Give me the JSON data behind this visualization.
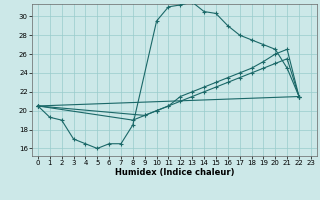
{
  "bg_color": "#cce8e8",
  "grid_color": "#99cccc",
  "line_color": "#1a6868",
  "xlabel": "Humidex (Indice chaleur)",
  "xlim": [
    -0.5,
    23.5
  ],
  "ylim": [
    15.2,
    31.3
  ],
  "xticks": [
    0,
    1,
    2,
    3,
    4,
    5,
    6,
    7,
    8,
    9,
    10,
    11,
    12,
    13,
    14,
    15,
    16,
    17,
    18,
    19,
    20,
    21,
    22,
    23
  ],
  "yticks": [
    16,
    18,
    20,
    22,
    24,
    26,
    28,
    30
  ],
  "line1_x": [
    0,
    1,
    2,
    3,
    4,
    5,
    6,
    7,
    8,
    10,
    11,
    12,
    13,
    14,
    15,
    16,
    17,
    18,
    19,
    20,
    21,
    22
  ],
  "line1_y": [
    20.5,
    19.3,
    19.0,
    17.0,
    16.5,
    16.0,
    16.5,
    16.5,
    18.5,
    29.5,
    31.0,
    31.2,
    31.5,
    30.5,
    30.3,
    29.0,
    28.0,
    27.5,
    27.0,
    26.5,
    24.5,
    21.5
  ],
  "line2_x": [
    0,
    8,
    9,
    10,
    11,
    12,
    13,
    14,
    15,
    16,
    17,
    18,
    19,
    20,
    21,
    22
  ],
  "line2_y": [
    20.5,
    19.0,
    19.5,
    20.0,
    20.5,
    21.5,
    22.0,
    22.5,
    23.0,
    23.5,
    24.0,
    24.5,
    25.2,
    26.0,
    26.5,
    21.5
  ],
  "line3_x": [
    0,
    9,
    10,
    11,
    12,
    13,
    14,
    15,
    16,
    17,
    18,
    19,
    20,
    21,
    22
  ],
  "line3_y": [
    20.5,
    19.5,
    20.0,
    20.5,
    21.0,
    21.5,
    22.0,
    22.5,
    23.0,
    23.5,
    24.0,
    24.5,
    25.0,
    25.5,
    21.5
  ],
  "line4_x": [
    0,
    22
  ],
  "line4_y": [
    20.5,
    21.5
  ],
  "tick_labelsize": 5,
  "xlabel_fontsize": 6
}
